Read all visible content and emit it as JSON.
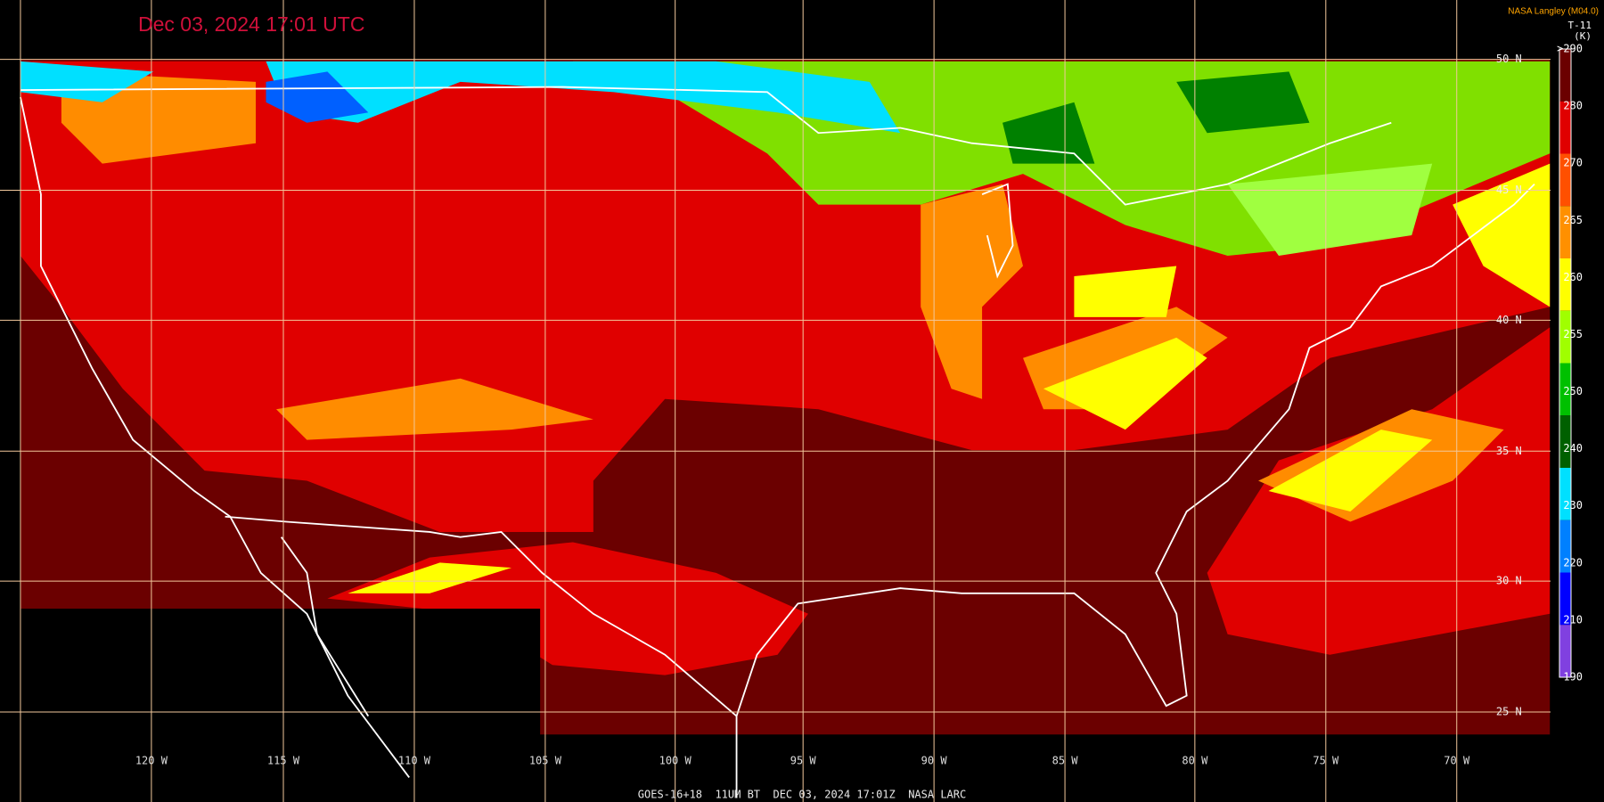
{
  "header": {
    "title": "Dec 03, 2024 17:01 UTC",
    "credit": "NASA Langley (M04.0)"
  },
  "legend": {
    "product": "T-11",
    "unit": "(K)",
    "labels": [
      ">290",
      "280",
      "270",
      "265",
      "260",
      "255",
      "250",
      "240",
      "230",
      "220",
      "210",
      "190"
    ]
  },
  "longitude_labels": [
    "120 W",
    "115 W",
    "110 W",
    "105 W",
    "100 W",
    "95 W",
    "90 W",
    "85 W",
    "80 W",
    "75 W",
    "70 W"
  ],
  "latitude_labels": [
    "50 N",
    "45 N",
    "40 N",
    "35 N",
    "30 N",
    "25 N"
  ],
  "caption": "GOES-16+18  11UM BT  DEC 03, 2024 17:01Z  NASA LARC"
}
